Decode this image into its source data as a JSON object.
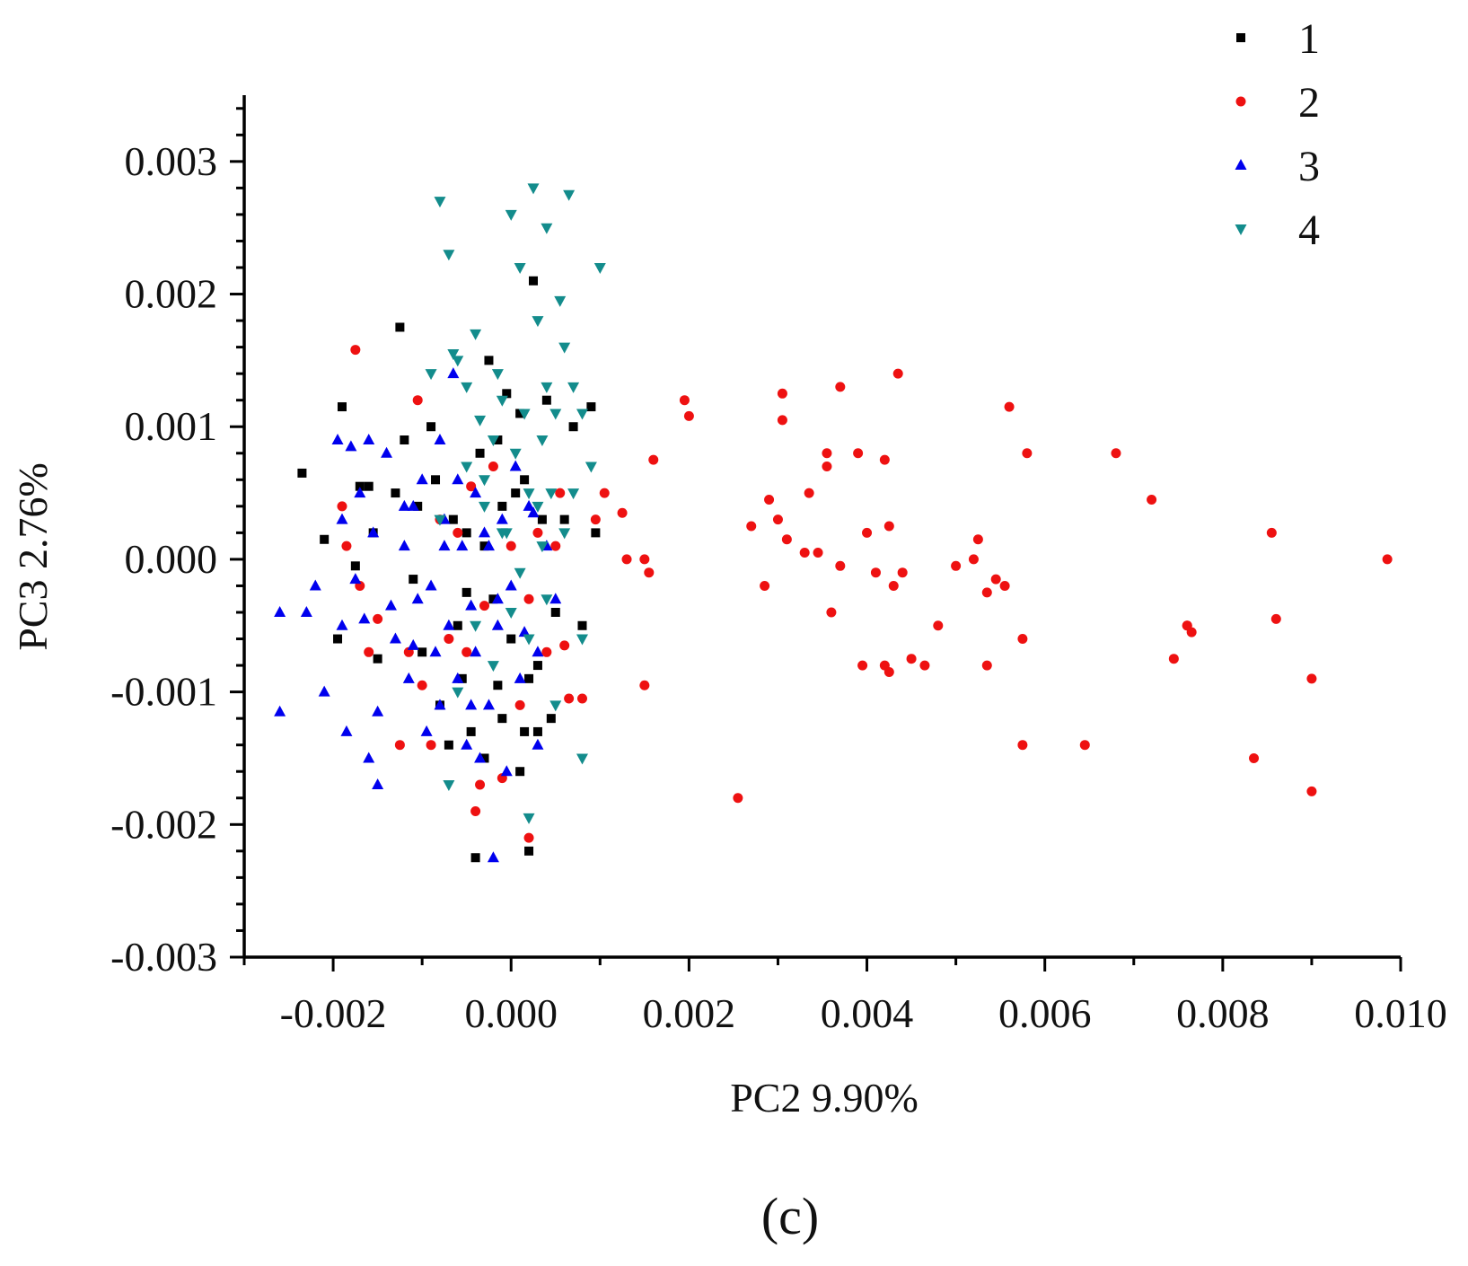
{
  "chart_data": {
    "type": "scatter",
    "xlabel": "PC2 9.90%",
    "ylabel": "PC3 2.76%",
    "xlim": [
      -0.003,
      0.01
    ],
    "ylim": [
      -0.003,
      0.0035
    ],
    "x_ticks": [
      -0.002,
      0.0,
      0.002,
      0.004,
      0.006,
      0.008,
      0.01
    ],
    "x_tick_labels": [
      "-0.002",
      "0.000",
      "0.002",
      "0.004",
      "0.006",
      "0.008",
      "0.010"
    ],
    "y_ticks": [
      -0.003,
      -0.002,
      -0.001,
      0.0,
      0.001,
      0.002,
      0.003
    ],
    "y_tick_labels": [
      "-0.003",
      "-0.002",
      "-0.001",
      "0.000",
      "0.001",
      "0.002",
      "0.003"
    ],
    "grid": false,
    "legend_position": "top-right",
    "series": [
      {
        "name": "1",
        "marker": "square",
        "color": "#000000",
        "points": [
          [
            -0.00235,
            0.00065
          ],
          [
            -0.0021,
            0.00015
          ],
          [
            -0.00195,
            -0.0006
          ],
          [
            -0.0019,
            0.00115
          ],
          [
            -0.00175,
            -5e-05
          ],
          [
            -0.0017,
            0.00055
          ],
          [
            -0.0016,
            0.00055
          ],
          [
            -0.00155,
            0.0002
          ],
          [
            -0.0015,
            -0.00075
          ],
          [
            -0.0013,
            0.0005
          ],
          [
            -0.00125,
            0.00175
          ],
          [
            -0.0012,
            0.0009
          ],
          [
            -0.0011,
            -0.00015
          ],
          [
            -0.00105,
            0.0004
          ],
          [
            -0.001,
            -0.0007
          ],
          [
            -0.0009,
            0.001
          ],
          [
            -0.00085,
            0.0006
          ],
          [
            -0.0008,
            -0.0011
          ],
          [
            -0.0007,
            -0.0014
          ],
          [
            -0.00065,
            0.0003
          ],
          [
            -0.0006,
            -0.0005
          ],
          [
            -0.00055,
            -0.0009
          ],
          [
            -0.0005,
            0.0002
          ],
          [
            -0.00045,
            -0.0013
          ],
          [
            -0.0004,
            -0.00225
          ],
          [
            -0.00035,
            0.0008
          ],
          [
            -0.0003,
            -0.0015
          ],
          [
            -0.00025,
            0.0015
          ],
          [
            -0.0002,
            -0.0003
          ],
          [
            -0.00015,
            0.0009
          ],
          [
            -0.0001,
            -0.0012
          ],
          [
            -5e-05,
            0.00125
          ],
          [
            0.0,
            -0.0006
          ],
          [
            5e-05,
            0.0005
          ],
          [
            0.0001,
            -0.0016
          ],
          [
            0.00015,
            0.0006
          ],
          [
            0.0002,
            -0.0022
          ],
          [
            0.00025,
            0.0021
          ],
          [
            0.0003,
            -0.0008
          ],
          [
            0.0004,
            0.0012
          ],
          [
            0.00045,
            -0.0012
          ],
          [
            0.0005,
            -0.0004
          ],
          [
            0.0006,
            0.0003
          ],
          [
            0.0007,
            0.001
          ],
          [
            0.0008,
            -0.0005
          ],
          [
            0.0009,
            0.00115
          ],
          [
            0.00095,
            0.0002
          ],
          [
            0.00015,
            -0.0013
          ],
          [
            -0.0003,
            0.0001
          ],
          [
            0.0002,
            -0.0009
          ],
          [
            -0.00015,
            -0.00095
          ],
          [
            0.0001,
            0.0011
          ],
          [
            0.00035,
            0.0003
          ],
          [
            -0.0005,
            -0.00025
          ],
          [
            0.0003,
            -0.0013
          ],
          [
            -0.0001,
            0.0004
          ]
        ]
      },
      {
        "name": "2",
        "marker": "circle",
        "color": "#ee1111",
        "points": [
          [
            -0.0019,
            0.0004
          ],
          [
            -0.00185,
            0.0001
          ],
          [
            -0.00175,
            0.00158
          ],
          [
            -0.0017,
            -0.0002
          ],
          [
            -0.0016,
            -0.0007
          ],
          [
            -0.0015,
            -0.00045
          ],
          [
            -0.00125,
            -0.0014
          ],
          [
            -0.00115,
            -0.0007
          ],
          [
            -0.00105,
            0.0012
          ],
          [
            -0.001,
            -0.00095
          ],
          [
            -0.0009,
            -0.0014
          ],
          [
            -0.0008,
            0.0003
          ],
          [
            -0.0007,
            -0.0006
          ],
          [
            -0.0006,
            0.0002
          ],
          [
            -0.0005,
            -0.0007
          ],
          [
            -0.00045,
            0.00055
          ],
          [
            -0.0004,
            -0.0019
          ],
          [
            -0.00035,
            -0.0017
          ],
          [
            -0.0003,
            -0.00035
          ],
          [
            -0.0002,
            0.0007
          ],
          [
            -0.0001,
            -0.00165
          ],
          [
            0.0,
            0.0001
          ],
          [
            0.0001,
            -0.0011
          ],
          [
            0.0002,
            -0.0003
          ],
          [
            0.0003,
            0.0002
          ],
          [
            0.0004,
            -0.0007
          ],
          [
            0.0005,
            0.0001
          ],
          [
            0.00055,
            0.0005
          ],
          [
            0.0006,
            -0.00065
          ],
          [
            0.0002,
            -0.0021
          ],
          [
            0.0008,
            -0.00105
          ],
          [
            0.00095,
            0.0003
          ],
          [
            0.00105,
            0.0005
          ],
          [
            0.00125,
            0.00035
          ],
          [
            0.0013,
            0.0
          ],
          [
            0.0015,
            0.0
          ],
          [
            0.00155,
            -0.0001
          ],
          [
            0.0016,
            0.00075
          ],
          [
            0.0015,
            -0.00095
          ],
          [
            0.00195,
            0.0012
          ],
          [
            0.002,
            0.00108
          ],
          [
            0.00255,
            -0.0018
          ],
          [
            0.0027,
            0.00025
          ],
          [
            0.00285,
            -0.0002
          ],
          [
            0.0029,
            0.00045
          ],
          [
            0.003,
            0.0003
          ],
          [
            0.00305,
            0.00125
          ],
          [
            0.00305,
            0.00105
          ],
          [
            0.0031,
            0.00015
          ],
          [
            0.0033,
            5e-05
          ],
          [
            0.00335,
            0.0005
          ],
          [
            0.00345,
            5e-05
          ],
          [
            0.00355,
            0.0008
          ],
          [
            0.00355,
            0.0007
          ],
          [
            0.0036,
            -0.0004
          ],
          [
            0.0037,
            0.0013
          ],
          [
            0.0037,
            -5e-05
          ],
          [
            0.0039,
            0.0008
          ],
          [
            0.00395,
            -0.0008
          ],
          [
            0.004,
            0.0002
          ],
          [
            0.0041,
            -0.0001
          ],
          [
            0.0042,
            0.00075
          ],
          [
            0.0042,
            -0.0008
          ],
          [
            0.00425,
            -0.00085
          ],
          [
            0.00425,
            0.00025
          ],
          [
            0.0043,
            -0.0002
          ],
          [
            0.00435,
            0.0014
          ],
          [
            0.0044,
            -0.0001
          ],
          [
            0.0045,
            -0.00075
          ],
          [
            0.00465,
            -0.0008
          ],
          [
            0.0048,
            -0.0005
          ],
          [
            0.005,
            -5e-05
          ],
          [
            0.0052,
            0.0
          ],
          [
            0.00525,
            0.00015
          ],
          [
            0.00535,
            -0.00025
          ],
          [
            0.00535,
            -0.0008
          ],
          [
            0.00545,
            -0.00015
          ],
          [
            0.00555,
            -0.0002
          ],
          [
            0.0056,
            0.00115
          ],
          [
            0.00575,
            -0.0006
          ],
          [
            0.00575,
            -0.0014
          ],
          [
            0.0058,
            0.0008
          ],
          [
            0.00645,
            -0.0014
          ],
          [
            0.0068,
            0.0008
          ],
          [
            0.0072,
            0.00045
          ],
          [
            0.00745,
            -0.00075
          ],
          [
            0.0076,
            -0.0005
          ],
          [
            0.0076,
            -0.0005
          ],
          [
            0.00835,
            -0.0015
          ],
          [
            0.00855,
            0.0002
          ],
          [
            0.0086,
            -0.00045
          ],
          [
            0.009,
            -0.0009
          ],
          [
            0.009,
            -0.00175
          ],
          [
            0.00765,
            -0.00055
          ],
          [
            0.00985,
            0.0
          ],
          [
            0.00065,
            -0.00105
          ]
        ]
      },
      {
        "name": "3",
        "marker": "triangle-up",
        "color": "#0000ee",
        "points": [
          [
            -0.0026,
            -0.00115
          ],
          [
            -0.0026,
            -0.0004
          ],
          [
            -0.0023,
            -0.0004
          ],
          [
            -0.0022,
            -0.0002
          ],
          [
            -0.0021,
            -0.001
          ],
          [
            -0.00195,
            0.0009
          ],
          [
            -0.0019,
            0.0003
          ],
          [
            -0.0019,
            -0.0005
          ],
          [
            -0.00185,
            -0.0013
          ],
          [
            -0.0018,
            0.00085
          ],
          [
            -0.00175,
            -0.00015
          ],
          [
            -0.0017,
            0.0005
          ],
          [
            -0.00165,
            -0.00045
          ],
          [
            -0.0016,
            0.0009
          ],
          [
            -0.0016,
            -0.0015
          ],
          [
            -0.0015,
            -0.00115
          ],
          [
            -0.0015,
            -0.0017
          ],
          [
            -0.0014,
            0.0008
          ],
          [
            -0.00135,
            -0.00035
          ],
          [
            -0.0013,
            -0.0006
          ],
          [
            -0.0012,
            0.0001
          ],
          [
            -0.00115,
            -0.0009
          ],
          [
            -0.0011,
            0.0004
          ],
          [
            -0.00105,
            -0.0003
          ],
          [
            -0.001,
            0.0006
          ],
          [
            -0.00095,
            -0.0013
          ],
          [
            -0.0009,
            -0.0002
          ],
          [
            -0.00085,
            -0.0007
          ],
          [
            -0.0008,
            0.0009
          ],
          [
            -0.0008,
            -0.0011
          ],
          [
            -0.00075,
            0.0003
          ],
          [
            -0.0007,
            -0.0005
          ],
          [
            -0.00065,
            0.0014
          ],
          [
            -0.0006,
            -0.0009
          ],
          [
            -0.00055,
            0.0001
          ],
          [
            -0.0005,
            -0.0014
          ],
          [
            -0.00045,
            -0.00035
          ],
          [
            -0.0004,
            -0.0007
          ],
          [
            -0.0004,
            0.0005
          ],
          [
            -0.00035,
            -0.0015
          ],
          [
            -0.0003,
            0.0002
          ],
          [
            -0.00025,
            -0.0011
          ],
          [
            -0.0002,
            -0.00225
          ],
          [
            -0.00015,
            -0.0005
          ],
          [
            -0.0001,
            0.0003
          ],
          [
            -5e-05,
            -0.0016
          ],
          [
            0.0,
            -0.0002
          ],
          [
            5e-05,
            0.0007
          ],
          [
            0.0001,
            -0.0009
          ],
          [
            0.0002,
            0.0004
          ],
          [
            0.0003,
            -0.0007
          ],
          [
            0.0003,
            -0.0014
          ],
          [
            0.0004,
            0.0001
          ],
          [
            0.0005,
            -0.0003
          ],
          [
            -0.0012,
            0.0004
          ],
          [
            -0.00155,
            0.0002
          ],
          [
            -0.0011,
            -0.00065
          ],
          [
            -0.00075,
            0.0001
          ],
          [
            -0.0006,
            0.0006
          ],
          [
            -0.00045,
            -0.0011
          ],
          [
            -0.00025,
            0.0001
          ],
          [
            -0.00015,
            -0.0003
          ],
          [
            0.00015,
            -0.00055
          ],
          [
            0.00025,
            0.00035
          ]
        ]
      },
      {
        "name": "4",
        "marker": "triangle-down",
        "color": "#138c8c",
        "points": [
          [
            -0.0008,
            0.0027
          ],
          [
            -0.0007,
            0.0023
          ],
          [
            -0.0006,
            0.0015
          ],
          [
            -0.0005,
            0.0013
          ],
          [
            -0.0004,
            0.0017
          ],
          [
            -0.00035,
            0.00105
          ],
          [
            -0.0003,
            0.0006
          ],
          [
            -0.0002,
            0.0009
          ],
          [
            -0.00015,
            0.0014
          ],
          [
            -0.0001,
            0.0012
          ],
          [
            -5e-05,
            0.0002
          ],
          [
            0.0,
            0.0026
          ],
          [
            5e-05,
            0.0008
          ],
          [
            0.0001,
            0.0022
          ],
          [
            0.00015,
            0.0011
          ],
          [
            0.0002,
            0.0005
          ],
          [
            0.00025,
            0.0028
          ],
          [
            0.0003,
            0.0018
          ],
          [
            0.00035,
            0.0009
          ],
          [
            0.0004,
            0.0013
          ],
          [
            0.00045,
            0.0005
          ],
          [
            0.0005,
            0.0011
          ],
          [
            0.0006,
            0.0016
          ],
          [
            0.00065,
            0.00275
          ],
          [
            0.0007,
            0.0013
          ],
          [
            0.0008,
            0.0011
          ],
          [
            0.0009,
            0.0007
          ],
          [
            0.001,
            0.0022
          ],
          [
            0.0006,
            0.0002
          ],
          [
            0.0004,
            -0.0003
          ],
          [
            0.0002,
            -0.0006
          ],
          [
            0.0,
            -0.0004
          ],
          [
            -0.0002,
            -0.0008
          ],
          [
            -0.0004,
            -0.0005
          ],
          [
            -0.0006,
            -0.001
          ],
          [
            -0.0007,
            -0.0017
          ],
          [
            -0.0005,
            0.0007
          ],
          [
            -0.0003,
            0.0004
          ],
          [
            0.0003,
            0.0004
          ],
          [
            0.0007,
            0.0005
          ],
          [
            0.0008,
            -0.0006
          ],
          [
            0.0008,
            -0.0015
          ],
          [
            0.0002,
            -0.00195
          ],
          [
            0.0005,
            -0.0011
          ],
          [
            -0.0001,
            0.0002
          ],
          [
            0.0001,
            -0.0001
          ],
          [
            0.00035,
            0.0001
          ],
          [
            -0.0008,
            0.0003
          ],
          [
            -0.0009,
            0.0014
          ],
          [
            0.00055,
            0.00195
          ],
          [
            -0.00065,
            0.00155
          ],
          [
            0.0004,
            0.0025
          ]
        ]
      }
    ]
  },
  "legend": [
    {
      "label": "1",
      "marker": "square",
      "color": "#000000"
    },
    {
      "label": "2",
      "marker": "circle",
      "color": "#ee1111"
    },
    {
      "label": "3",
      "marker": "triangle-up",
      "color": "#0000ee"
    },
    {
      "label": "4",
      "marker": "triangle-down",
      "color": "#138c8c"
    }
  ],
  "panel_label": "(c)"
}
